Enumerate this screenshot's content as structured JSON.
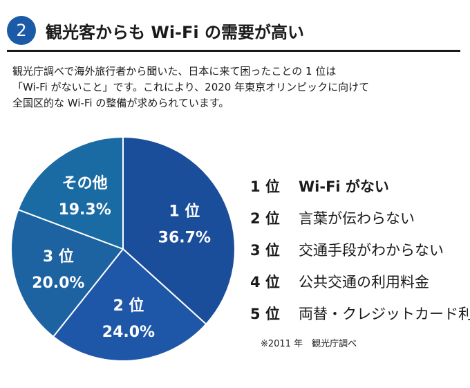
{
  "header": {
    "number": "2",
    "title": "観光客からも Wi-Fi の需要が高い"
  },
  "description": {
    "line1": "観光庁調べで海外旅行者から聞いた、日本に来て困ったことの 1 位は",
    "line2": "「Wi-Fi がないこと」です。これにより、2020 年東京オリンピックに向けて",
    "line3": "全国区的な Wi-Fi の整備が求められています。"
  },
  "colors": {
    "accent": "#1a5aa7",
    "slices": [
      "#1a4d9a",
      "#1e56a8",
      "#1d62a1",
      "#1a6ba3"
    ]
  },
  "chart_data": {
    "type": "pie",
    "slices": [
      {
        "label": "1 位",
        "value": 36.7,
        "display": "36.7%"
      },
      {
        "label": "2 位",
        "value": 24.0,
        "display": "24.0%"
      },
      {
        "label": "3 位",
        "value": 20.0,
        "display": "20.0%"
      },
      {
        "label": "その他",
        "value": 19.3,
        "display": "19.3%"
      }
    ]
  },
  "ranking": [
    {
      "rank": "1 位",
      "label": "Wi-Fi がない"
    },
    {
      "rank": "2 位",
      "label": "言葉が伝わらない"
    },
    {
      "rank": "3 位",
      "label": "交通手段がわからない"
    },
    {
      "rank": "4 位",
      "label": "公共交通の利用料金"
    },
    {
      "rank": "5 位",
      "label": "両替・クレジットカード利用"
    }
  ],
  "source": "※2011 年　観光庁調べ"
}
